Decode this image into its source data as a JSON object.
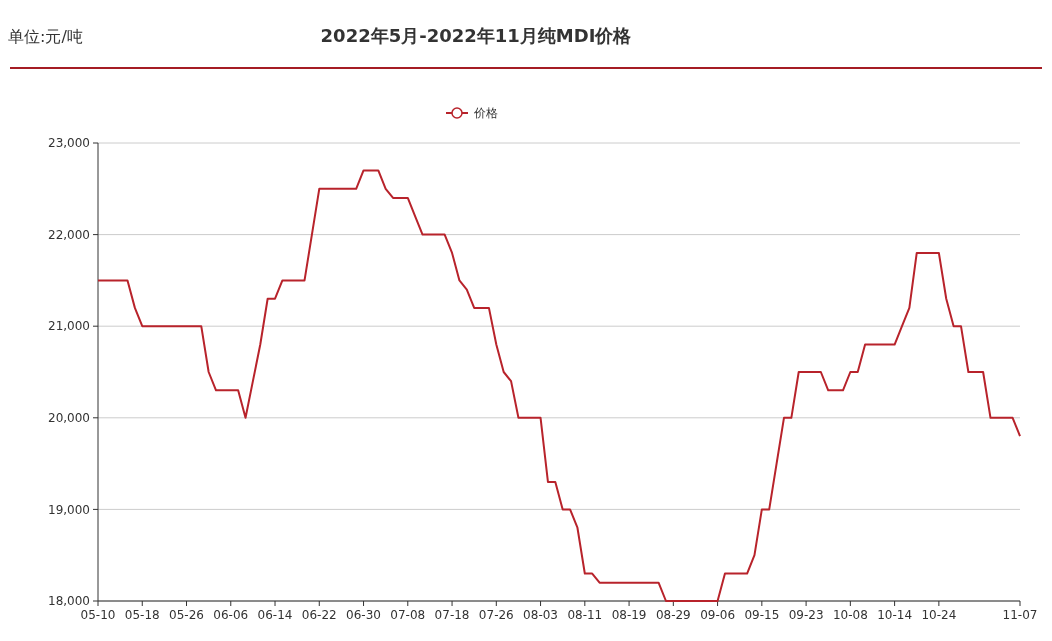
{
  "chart_data": {
    "type": "line",
    "title": "2022年5月-2022年11月纯MDI价格",
    "annotations": [
      "单位:元/吨"
    ],
    "categories": [
      "05-10",
      null,
      null,
      null,
      null,
      null,
      "05-18",
      null,
      null,
      null,
      null,
      null,
      "05-26",
      null,
      null,
      null,
      null,
      null,
      "06-06",
      null,
      null,
      null,
      null,
      null,
      "06-14",
      null,
      null,
      null,
      null,
      null,
      "06-22",
      null,
      null,
      null,
      null,
      null,
      "06-30",
      null,
      null,
      null,
      null,
      null,
      "07-08",
      null,
      null,
      null,
      null,
      null,
      "07-18",
      null,
      null,
      null,
      null,
      null,
      "07-26",
      null,
      null,
      null,
      null,
      null,
      "08-03",
      null,
      null,
      null,
      null,
      null,
      "08-11",
      null,
      null,
      null,
      null,
      null,
      "08-19",
      null,
      null,
      null,
      null,
      null,
      "08-29",
      null,
      null,
      null,
      null,
      null,
      "09-06",
      null,
      null,
      null,
      null,
      null,
      "09-15",
      null,
      null,
      null,
      null,
      null,
      "09-23",
      null,
      null,
      null,
      null,
      null,
      "10-08",
      null,
      null,
      null,
      null,
      null,
      "10-14",
      null,
      null,
      null,
      null,
      null,
      "10-24",
      null,
      null,
      null,
      null,
      null,
      null,
      null,
      null,
      null,
      null,
      "11-07"
    ],
    "series": [
      {
        "name": "价格",
        "color": "#b8232b",
        "values": [
          21500,
          21500,
          21500,
          21500,
          21500,
          21200,
          21000,
          21000,
          21000,
          21000,
          21000,
          21000,
          21000,
          21000,
          21000,
          20500,
          20300,
          20300,
          20300,
          20300,
          20000,
          20400,
          20800,
          21300,
          21300,
          21500,
          21500,
          21500,
          21500,
          22000,
          22500,
          22500,
          22500,
          22500,
          22500,
          22500,
          22700,
          22700,
          22700,
          22500,
          22400,
          22400,
          22400,
          22200,
          22000,
          22000,
          22000,
          22000,
          21800,
          21500,
          21400,
          21200,
          21200,
          21200,
          20800,
          20500,
          20400,
          20000,
          20000,
          20000,
          20000,
          19300,
          19300,
          19000,
          19000,
          18800,
          18300,
          18300,
          18200,
          18200,
          18200,
          18200,
          18200,
          18200,
          18200,
          18200,
          18200,
          18000,
          18000,
          18000,
          18000,
          18000,
          18000,
          18000,
          18000,
          18300,
          18300,
          18300,
          18300,
          18500,
          19000,
          19000,
          19500,
          20000,
          20000,
          20500,
          20500,
          20500,
          20500,
          20300,
          20300,
          20300,
          20500,
          20500,
          20800,
          20800,
          20800,
          20800,
          20800,
          21000,
          21200,
          21800,
          21800,
          21800,
          21800,
          21300,
          21000,
          21000,
          20500,
          20500,
          20500,
          20000,
          20000,
          20000,
          20000,
          19800
        ]
      }
    ],
    "ylim": [
      18000,
      23000
    ],
    "yticks": [
      {
        "value": 18000,
        "label": "18,000"
      },
      {
        "value": 19000,
        "label": "19,000"
      },
      {
        "value": 20000,
        "label": "20,000"
      },
      {
        "value": 21000,
        "label": "21,000"
      },
      {
        "value": 22000,
        "label": "22,000"
      },
      {
        "value": 23000,
        "label": "23,000"
      }
    ],
    "grid": "y",
    "legend": "top",
    "marker": "none",
    "line_style": "solid"
  }
}
